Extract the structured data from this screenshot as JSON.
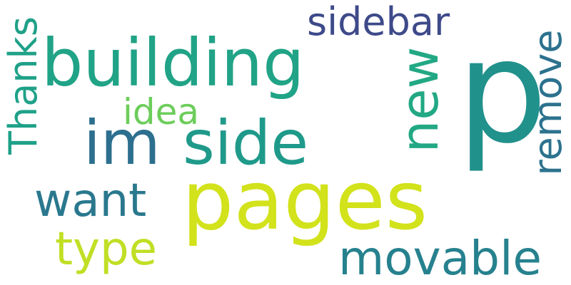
{
  "words": [
    {
      "text": "p",
      "color": "#21918c",
      "vertical": false
    },
    {
      "text": "building",
      "color": "#20a386",
      "vertical": false
    },
    {
      "text": "pages",
      "color": "#d2e21b",
      "vertical": false
    },
    {
      "text": "side",
      "color": "#1f9a8a",
      "vertical": false
    },
    {
      "text": "im",
      "color": "#2d6f8e",
      "vertical": false
    },
    {
      "text": "new",
      "color": "#22a884",
      "vertical": true
    },
    {
      "text": "sidebar",
      "color": "#3e4a89",
      "vertical": false
    },
    {
      "text": "remove",
      "color": "#2c728e",
      "vertical": true
    },
    {
      "text": "Thanks",
      "color": "#1fa188",
      "vertical": true
    },
    {
      "text": "idea",
      "color": "#6ccd5a",
      "vertical": false
    },
    {
      "text": "want",
      "color": "#2a788e",
      "vertical": false
    },
    {
      "text": "type",
      "color": "#c0df25",
      "vertical": false
    },
    {
      "text": "movable",
      "color": "#26818e",
      "vertical": false
    }
  ]
}
